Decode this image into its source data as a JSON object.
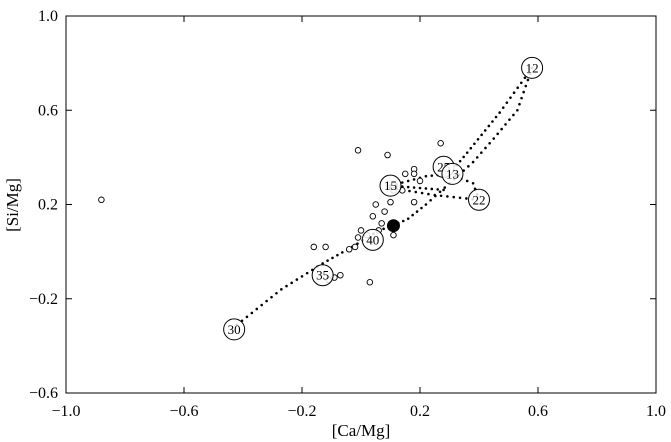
{
  "chart_data": {
    "type": "scatter",
    "xlabel": "[Ca/Mg]",
    "ylabel": "[Si/Mg]",
    "xlim": [
      -1.0,
      1.0
    ],
    "ylim": [
      -0.6,
      1.0
    ],
    "x_ticks": [
      -1.0,
      -0.6,
      -0.2,
      0.2,
      0.6,
      1.0
    ],
    "y_ticks": [
      -0.6,
      -0.2,
      0.2,
      0.6,
      1.0
    ],
    "x_tick_labels": [
      "−1.0",
      "−0.6",
      "−0.2",
      "0.2",
      "0.6",
      "1.0"
    ],
    "y_tick_labels": [
      "−0.6",
      "−0.2",
      "0.2",
      "0.6",
      "1.0"
    ],
    "grid": false,
    "series": [
      {
        "style": "open-circles",
        "points": [
          [
            -0.88,
            0.22
          ],
          [
            -0.01,
            0.43
          ],
          [
            0.09,
            0.41
          ],
          [
            0.18,
            0.35
          ],
          [
            0.27,
            0.46
          ],
          [
            0.18,
            0.33
          ],
          [
            0.2,
            0.3
          ],
          [
            0.15,
            0.33
          ],
          [
            0.11,
            0.26
          ],
          [
            0.14,
            0.26
          ],
          [
            0.1,
            0.21
          ],
          [
            0.18,
            0.21
          ],
          [
            0.05,
            0.2
          ],
          [
            0.08,
            0.17
          ],
          [
            0.04,
            0.15
          ],
          [
            0.07,
            0.12
          ],
          [
            0.06,
            0.09
          ],
          [
            0.11,
            0.07
          ],
          [
            0.02,
            0.07
          ],
          [
            0.0,
            0.09
          ],
          [
            -0.01,
            0.06
          ],
          [
            -0.02,
            0.02
          ],
          [
            -0.04,
            0.01
          ],
          [
            -0.16,
            0.02
          ],
          [
            -0.12,
            0.02
          ],
          [
            -0.07,
            -0.1
          ],
          [
            -0.09,
            -0.11
          ],
          [
            -0.11,
            -0.12
          ],
          [
            0.03,
            -0.13
          ]
        ]
      },
      {
        "style": "filled-marker",
        "points": [
          [
            0.11,
            0.11
          ]
        ]
      },
      {
        "style": "dotted-track",
        "segments": [
          [
            [
              -0.42,
              -0.31
            ],
            [
              -0.27,
              -0.16
            ],
            [
              -0.13,
              -0.05
            ],
            [
              -0.03,
              0.02
            ],
            [
              0.06,
              0.09
            ],
            [
              0.11,
              0.11
            ],
            [
              0.16,
              0.14
            ],
            [
              0.22,
              0.2
            ],
            [
              0.3,
              0.29
            ],
            [
              0.38,
              0.38
            ],
            [
              0.45,
              0.48
            ],
            [
              0.53,
              0.6
            ],
            [
              0.58,
              0.78
            ]
          ],
          [
            [
              0.1,
              0.28
            ],
            [
              0.22,
              0.32
            ],
            [
              0.3,
              0.33
            ]
          ],
          [
            [
              0.1,
              0.28
            ],
            [
              0.2,
              0.27
            ],
            [
              0.3,
              0.26
            ]
          ],
          [
            [
              0.1,
              0.27
            ],
            [
              0.25,
              0.24
            ],
            [
              0.4,
              0.22
            ]
          ],
          [
            [
              0.3,
              0.33
            ],
            [
              0.38,
              0.29
            ],
            [
              0.4,
              0.22
            ]
          ],
          [
            [
              0.58,
              0.78
            ],
            [
              0.47,
              0.59
            ],
            [
              0.36,
              0.42
            ],
            [
              0.3,
              0.33
            ]
          ]
        ]
      },
      {
        "style": "labeled-circles",
        "points": [
          {
            "x": 0.58,
            "y": 0.78,
            "label": "12"
          },
          {
            "x": 0.28,
            "y": 0.36,
            "label": "25"
          },
          {
            "x": 0.31,
            "y": 0.33,
            "label": "13"
          },
          {
            "x": 0.1,
            "y": 0.28,
            "label": "15"
          },
          {
            "x": 0.4,
            "y": 0.22,
            "label": "22"
          },
          {
            "x": 0.04,
            "y": 0.05,
            "label": "40"
          },
          {
            "x": -0.13,
            "y": -0.1,
            "label": "35"
          },
          {
            "x": -0.43,
            "y": -0.33,
            "label": "30"
          }
        ]
      }
    ]
  }
}
